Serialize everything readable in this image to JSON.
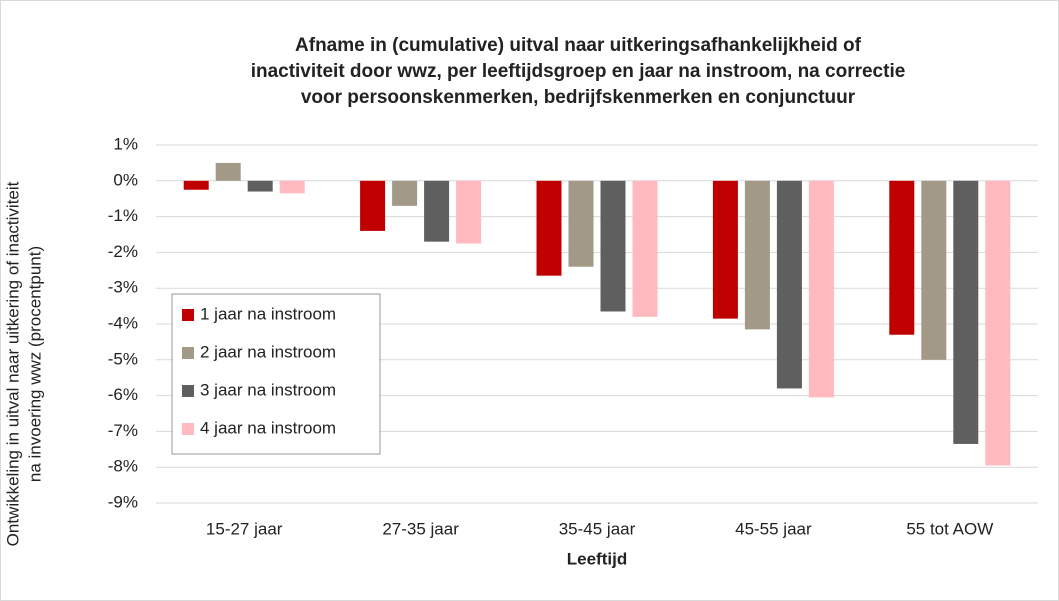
{
  "chart_data": {
    "type": "bar",
    "title": [
      "Afname in (cumulative) uitval naar uitkeringsafhankelijkheid of",
      "inactiviteit door wwz, per leeftijdsgroep en jaar na instroom, na correctie",
      "voor persoonskenmerken, bedrijfskenmerken en conjunctuur"
    ],
    "x_label": "Leeftijd",
    "y_label": [
      "Ontwikkeling in uitval naar uitkering of inactiviteit",
      "na invoering wwz (procentpunt)"
    ],
    "categories": [
      "15-27 jaar",
      "27-35 jaar",
      "35-45 jaar",
      "45-55 jaar",
      "55 tot AOW"
    ],
    "series": [
      {
        "name": "1 jaar na instroom",
        "color": "#c00000",
        "values": [
          -0.25,
          -1.4,
          -2.65,
          -3.85,
          -4.3
        ]
      },
      {
        "name": "2 jaar na instroom",
        "color": "#a29a87",
        "values": [
          0.5,
          -0.7,
          -2.4,
          -4.15,
          -5.0
        ]
      },
      {
        "name": "3 jaar na instroom",
        "color": "#5f5f5f",
        "values": [
          -0.3,
          -1.7,
          -3.65,
          -5.8,
          -7.35
        ]
      },
      {
        "name": "4 jaar na instroom",
        "color": "#ffb9bf",
        "values": [
          -0.35,
          -1.75,
          -3.8,
          -6.05,
          -7.95
        ]
      }
    ],
    "ylim": [
      -9,
      1
    ],
    "yticks": [
      {
        "value": 1,
        "label": "1%"
      },
      {
        "value": 0,
        "label": "0%"
      },
      {
        "value": -1,
        "label": "-1%"
      },
      {
        "value": -2,
        "label": "-2%"
      },
      {
        "value": -3,
        "label": "-3%"
      },
      {
        "value": -4,
        "label": "-4%"
      },
      {
        "value": -5,
        "label": "-5%"
      },
      {
        "value": -6,
        "label": "-6%"
      },
      {
        "value": -7,
        "label": "-7%"
      },
      {
        "value": -8,
        "label": "-8%"
      },
      {
        "value": -9,
        "label": "-9%"
      }
    ],
    "grid": true,
    "legend": "left"
  }
}
